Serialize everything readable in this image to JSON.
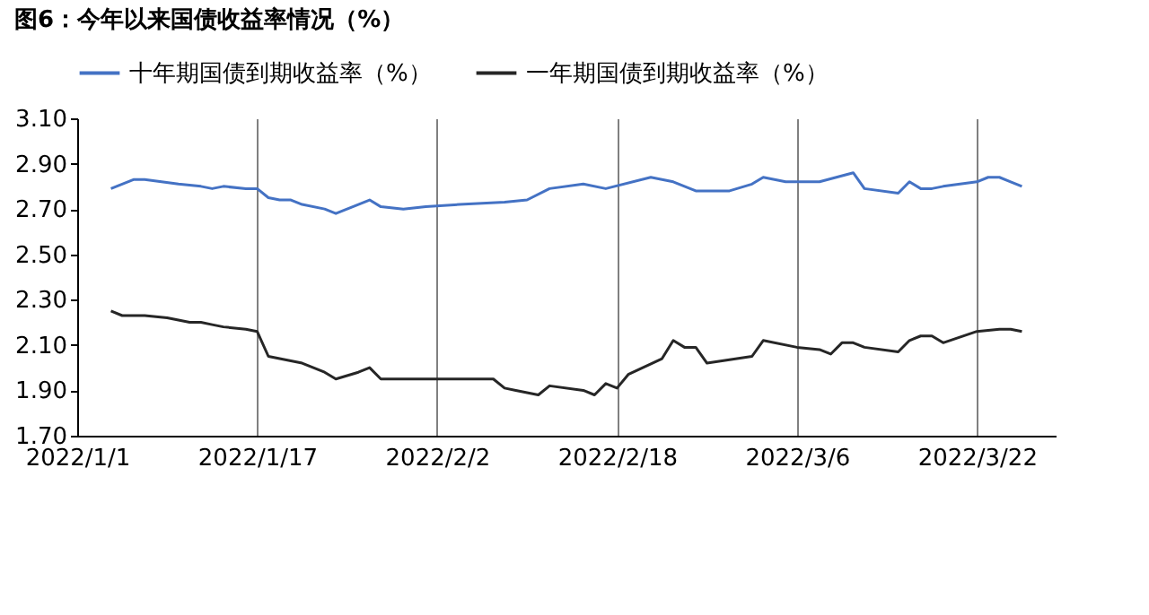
{
  "chart_data": {
    "type": "line",
    "title": "图6：今年以来国债收益率情况（%）",
    "xlim": [
      "2022-01-01",
      "2022-03-29"
    ],
    "xticks": [
      {
        "value": "2022-01-01",
        "label": "2022/1/1"
      },
      {
        "value": "2022-01-17",
        "label": "2022/1/17"
      },
      {
        "value": "2022-02-02",
        "label": "2022/2/2"
      },
      {
        "value": "2022-02-18",
        "label": "2022/2/18"
      },
      {
        "value": "2022-03-06",
        "label": "2022/3/6"
      },
      {
        "value": "2022-03-22",
        "label": "2022/3/22"
      }
    ],
    "ylim": [
      1.7,
      3.1
    ],
    "yticks": [
      {
        "value": 1.7,
        "label": "1.70"
      },
      {
        "value": 1.9,
        "label": "1.90"
      },
      {
        "value": 2.1,
        "label": "2.10"
      },
      {
        "value": 2.3,
        "label": "2.30"
      },
      {
        "value": 2.5,
        "label": "2.50"
      },
      {
        "value": 2.7,
        "label": "2.70"
      },
      {
        "value": 2.9,
        "label": "2.90"
      },
      {
        "value": 3.1,
        "label": "3.10"
      }
    ],
    "grid": "x",
    "legend": "top",
    "marker": "none",
    "line_style": "solid",
    "series": [
      {
        "name": "十年期国债到期收益率（%）",
        "color": "#4472c4",
        "x": [
          "2022-01-04",
          "2022-01-06",
          "2022-01-07",
          "2022-01-10",
          "2022-01-12",
          "2022-01-13",
          "2022-01-14",
          "2022-01-16",
          "2022-01-17",
          "2022-01-18",
          "2022-01-19",
          "2022-01-20",
          "2022-01-21",
          "2022-01-23",
          "2022-01-24",
          "2022-01-26",
          "2022-01-27",
          "2022-01-28",
          "2022-01-30",
          "2022-02-01",
          "2022-02-04",
          "2022-02-08",
          "2022-02-10",
          "2022-02-12",
          "2022-02-15",
          "2022-02-17",
          "2022-02-21",
          "2022-02-23",
          "2022-02-24",
          "2022-02-25",
          "2022-02-28",
          "2022-03-02",
          "2022-03-03",
          "2022-03-05",
          "2022-03-08",
          "2022-03-11",
          "2022-03-12",
          "2022-03-15",
          "2022-03-16",
          "2022-03-17",
          "2022-03-18",
          "2022-03-19",
          "2022-03-22",
          "2022-03-23",
          "2022-03-24",
          "2022-03-25",
          "2022-03-26"
        ],
        "values": [
          2.79,
          2.83,
          2.83,
          2.81,
          2.8,
          2.79,
          2.8,
          2.79,
          2.79,
          2.75,
          2.74,
          2.74,
          2.72,
          2.7,
          2.68,
          2.72,
          2.74,
          2.71,
          2.7,
          2.71,
          2.72,
          2.73,
          2.74,
          2.79,
          2.81,
          2.79,
          2.84,
          2.82,
          2.8,
          2.78,
          2.78,
          2.81,
          2.84,
          2.82,
          2.82,
          2.86,
          2.79,
          2.77,
          2.82,
          2.79,
          2.79,
          2.8,
          2.82,
          2.84,
          2.84,
          2.82,
          2.8
        ]
      },
      {
        "name": "一年期国债到期收益率（%）",
        "color": "#262626",
        "x": [
          "2022-01-04",
          "2022-01-05",
          "2022-01-07",
          "2022-01-09",
          "2022-01-10",
          "2022-01-11",
          "2022-01-12",
          "2022-01-13",
          "2022-01-14",
          "2022-01-16",
          "2022-01-17",
          "2022-01-18",
          "2022-01-19",
          "2022-01-21",
          "2022-01-23",
          "2022-01-24",
          "2022-01-26",
          "2022-01-27",
          "2022-01-28",
          "2022-01-30",
          "2022-02-07",
          "2022-02-08",
          "2022-02-09",
          "2022-02-11",
          "2022-02-12",
          "2022-02-15",
          "2022-02-16",
          "2022-02-17",
          "2022-02-18",
          "2022-02-19",
          "2022-02-22",
          "2022-02-23",
          "2022-02-24",
          "2022-02-25",
          "2022-02-26",
          "2022-03-02",
          "2022-03-03",
          "2022-03-06",
          "2022-03-08",
          "2022-03-09",
          "2022-03-10",
          "2022-03-11",
          "2022-03-12",
          "2022-03-15",
          "2022-03-16",
          "2022-03-17",
          "2022-03-18",
          "2022-03-19",
          "2022-03-22",
          "2022-03-24",
          "2022-03-25",
          "2022-03-26"
        ],
        "values": [
          2.25,
          2.23,
          2.23,
          2.22,
          2.21,
          2.2,
          2.2,
          2.19,
          2.18,
          2.17,
          2.16,
          2.05,
          2.04,
          2.02,
          1.98,
          1.95,
          1.98,
          2.0,
          1.95,
          1.95,
          1.95,
          1.91,
          1.9,
          1.88,
          1.92,
          1.9,
          1.88,
          1.93,
          1.91,
          1.97,
          2.04,
          2.12,
          2.09,
          2.09,
          2.02,
          2.05,
          2.12,
          2.09,
          2.08,
          2.06,
          2.11,
          2.11,
          2.09,
          2.07,
          2.12,
          2.14,
          2.14,
          2.11,
          2.16,
          2.17,
          2.17,
          2.16
        ]
      }
    ]
  }
}
